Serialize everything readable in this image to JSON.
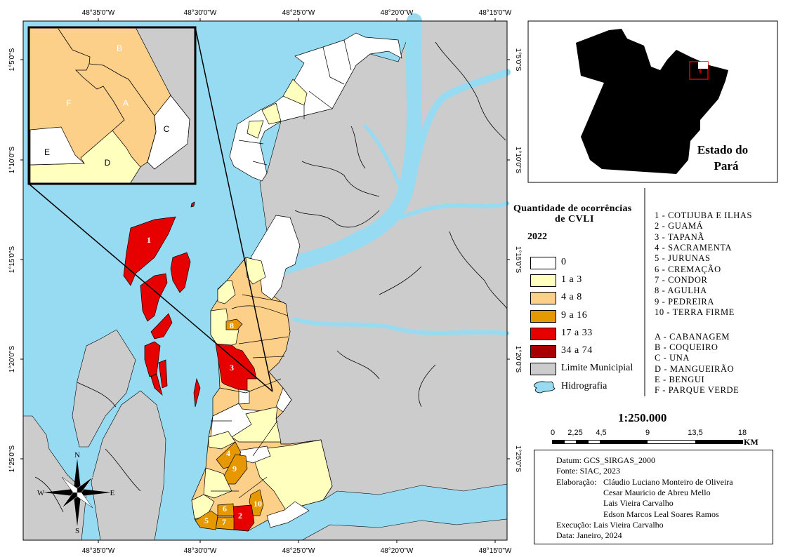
{
  "colors": {
    "water": "#97dbf2",
    "limite_municipal": "#cccccc",
    "class_0": "#ffffff",
    "class_1_3": "#ffffbe",
    "class_4_8": "#fdd08a",
    "class_9_16": "#e69800",
    "class_17_33": "#e60000",
    "class_34_74": "#a80000"
  },
  "graticule": {
    "lon_labels": [
      "48°35'0\"W",
      "48°30'0\"W",
      "48°25'0\"W",
      "48°20'0\"W",
      "48°15'0\"W"
    ],
    "lat_labels": [
      "1°5'0\"S",
      "1°10'0\"S",
      "1°15'0\"S",
      "1°20'0\"S",
      "1°25'0\"S"
    ]
  },
  "map_labels": {
    "districts": [
      "1",
      "2",
      "3",
      "4",
      "5",
      "6",
      "7",
      "8",
      "9",
      "10"
    ]
  },
  "inset": {
    "labels": [
      "A",
      "B",
      "C",
      "D",
      "E",
      "F"
    ]
  },
  "compass": {
    "n": "N",
    "s": "S",
    "e": "E",
    "w": "W"
  },
  "locator": {
    "title_line1": "Estado do",
    "title_line2": "Pará"
  },
  "legend": {
    "title_line1": "Quantidade de ocorrências",
    "title_line2": "de CVLI",
    "year": "2022",
    "classes": [
      {
        "label": "0"
      },
      {
        "label": "1 a 3"
      },
      {
        "label": "4 a 8"
      },
      {
        "label": "9 a 16"
      },
      {
        "label": "17 a 33"
      },
      {
        "label": "34 a 74"
      },
      {
        "label": "Limite Municipial"
      },
      {
        "label": "Hidrografia"
      }
    ]
  },
  "district_list": [
    "1 - COTIJUBA E ILHAS",
    "2 - GUAMÁ",
    "3 - TAPANÃ",
    "4 - SACRAMENTA",
    "5 - JURUNAS",
    "6 - CREMAÇÃO",
    "7 - CONDOR",
    "8 - AGULHA",
    "9 - PEDREIRA",
    "10 - TERRA FIRME"
  ],
  "inset_list": [
    "A - CABANAGEM",
    "B - COQUEIRO",
    "C - UNA",
    "D - MANGUEIRÃO",
    "E - BENGUI",
    "F - PARQUE VERDE"
  ],
  "scale": {
    "ratio": "1:250.000",
    "ticks": [
      "0",
      "2,25",
      "4,5",
      "9",
      "13,5",
      "18"
    ],
    "unit": "KM"
  },
  "info": {
    "datum": "Datum: GCS_SIRGAS_2000",
    "fonte": "Fonte: SIAC, 2023",
    "elaboracao_label": "Elaboração:",
    "authors": [
      "Cláudio Luciano Monteiro de Oliveira",
      "Cesar Mauricio de Abreu Mello",
      "Lais Vieira Carvalho",
      "Edson Marcos Leal Soares Ramos"
    ],
    "execucao": "Execução: Lais Vieira Carvalho",
    "data": "Data: Janeiro, 2024"
  }
}
